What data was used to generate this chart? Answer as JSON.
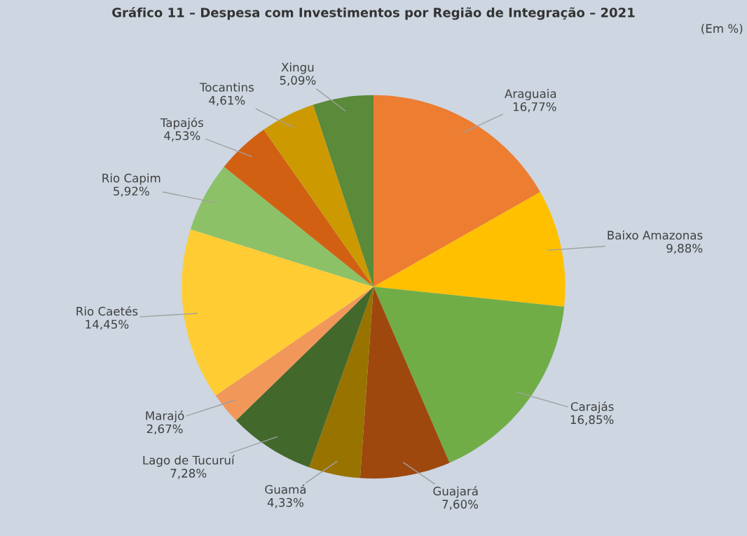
{
  "chart_data": {
    "type": "pie",
    "title": "Gráfico 11 – Despesa com Investimentos por Região de Integração – 2021",
    "annotations": [
      "(Em %)"
    ],
    "categories": [
      "Araguaia",
      "Baixo Amazonas",
      "Carajás",
      "Guajará",
      "Guamá",
      "Lago de Tucuruí",
      "Marajó",
      "Rio Caetés",
      "Rio Capim",
      "Tapajós",
      "Tocantins",
      "Xingu"
    ],
    "values": [
      16.77,
      9.88,
      16.85,
      7.6,
      4.33,
      7.28,
      2.67,
      14.45,
      5.92,
      4.53,
      4.61,
      5.09
    ],
    "value_labels": [
      "16,77%",
      "9,88%",
      "16,85%",
      "7,60%",
      "4,33%",
      "7,28%",
      "2,67%",
      "14,45%",
      "5,92%",
      "4,53%",
      "4,61%",
      "5,09%"
    ],
    "colors": [
      "#ed7d31",
      "#ffc000",
      "#70ad47",
      "#9e480e",
      "#997300",
      "#43682b",
      "#f1975a",
      "#ffcd33",
      "#8cc168",
      "#d26012",
      "#cc9a00",
      "#5a8a3a"
    ],
    "legend": false
  }
}
